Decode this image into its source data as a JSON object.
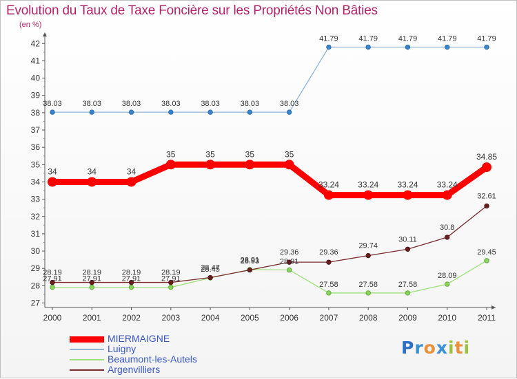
{
  "title": "Evolution du Taux de Taxe Foncière sur les Propriétés Non Bâties",
  "subtitle": "(en %)",
  "logo_text": "Proxiti",
  "chart_data": {
    "type": "line",
    "categories": [
      "2000",
      "2001",
      "2002",
      "2003",
      "2004",
      "2005",
      "2006",
      "2007",
      "2008",
      "2009",
      "2010",
      "2011"
    ],
    "ylim": [
      27,
      42
    ],
    "yticks": [
      27,
      28,
      29,
      30,
      31,
      32,
      33,
      34,
      35,
      36,
      37,
      38,
      39,
      40,
      41,
      42
    ],
    "grid": false,
    "legend_position": "bottom-left",
    "series": [
      {
        "name": "MIERMAIGNE",
        "color": "#ff0000",
        "values": [
          34,
          34,
          34,
          35,
          35,
          35,
          35,
          33.24,
          33.24,
          33.24,
          33.24,
          34.85
        ],
        "labels": [
          "34",
          "34",
          "34",
          "35",
          "35",
          "35",
          "35",
          "33.24",
          "33.24",
          "33.24",
          "33.24",
          "34.85"
        ]
      },
      {
        "name": "Luigny",
        "color": "#8fb3d9",
        "values": [
          38.03,
          38.03,
          38.03,
          38.03,
          38.03,
          38.03,
          38.03,
          41.79,
          41.79,
          41.79,
          41.79,
          41.79
        ],
        "labels": [
          "38.03",
          "38.03",
          "38.03",
          "38.03",
          "38.03",
          "38.03",
          "38.03",
          "41.79",
          "41.79",
          "41.79",
          "41.79",
          "41.79"
        ]
      },
      {
        "name": "Beaumont-les-Autels",
        "color": "#9be07a",
        "values": [
          27.91,
          27.91,
          27.91,
          27.91,
          28.45,
          28.93,
          28.91,
          27.58,
          27.58,
          27.58,
          28.09,
          29.45
        ],
        "labels": [
          "27.91",
          "27.91",
          "27.91",
          "27.91",
          "28.45",
          "28.93",
          "28.91",
          "27.58",
          "27.58",
          "27.58",
          "28.09",
          "29.45"
        ]
      },
      {
        "name": "Argenvilliers",
        "color": "#7a2b2b",
        "values": [
          28.19,
          28.19,
          28.19,
          28.19,
          28.47,
          28.91,
          29.36,
          29.36,
          29.74,
          30.11,
          30.8,
          32.61
        ],
        "labels": [
          "28.19",
          "28.19",
          "28.19",
          "28.19",
          "28.47",
          "28.91",
          "29.36",
          "29.36",
          "29.74",
          "30.11",
          "30.8",
          "32.61"
        ]
      }
    ]
  }
}
